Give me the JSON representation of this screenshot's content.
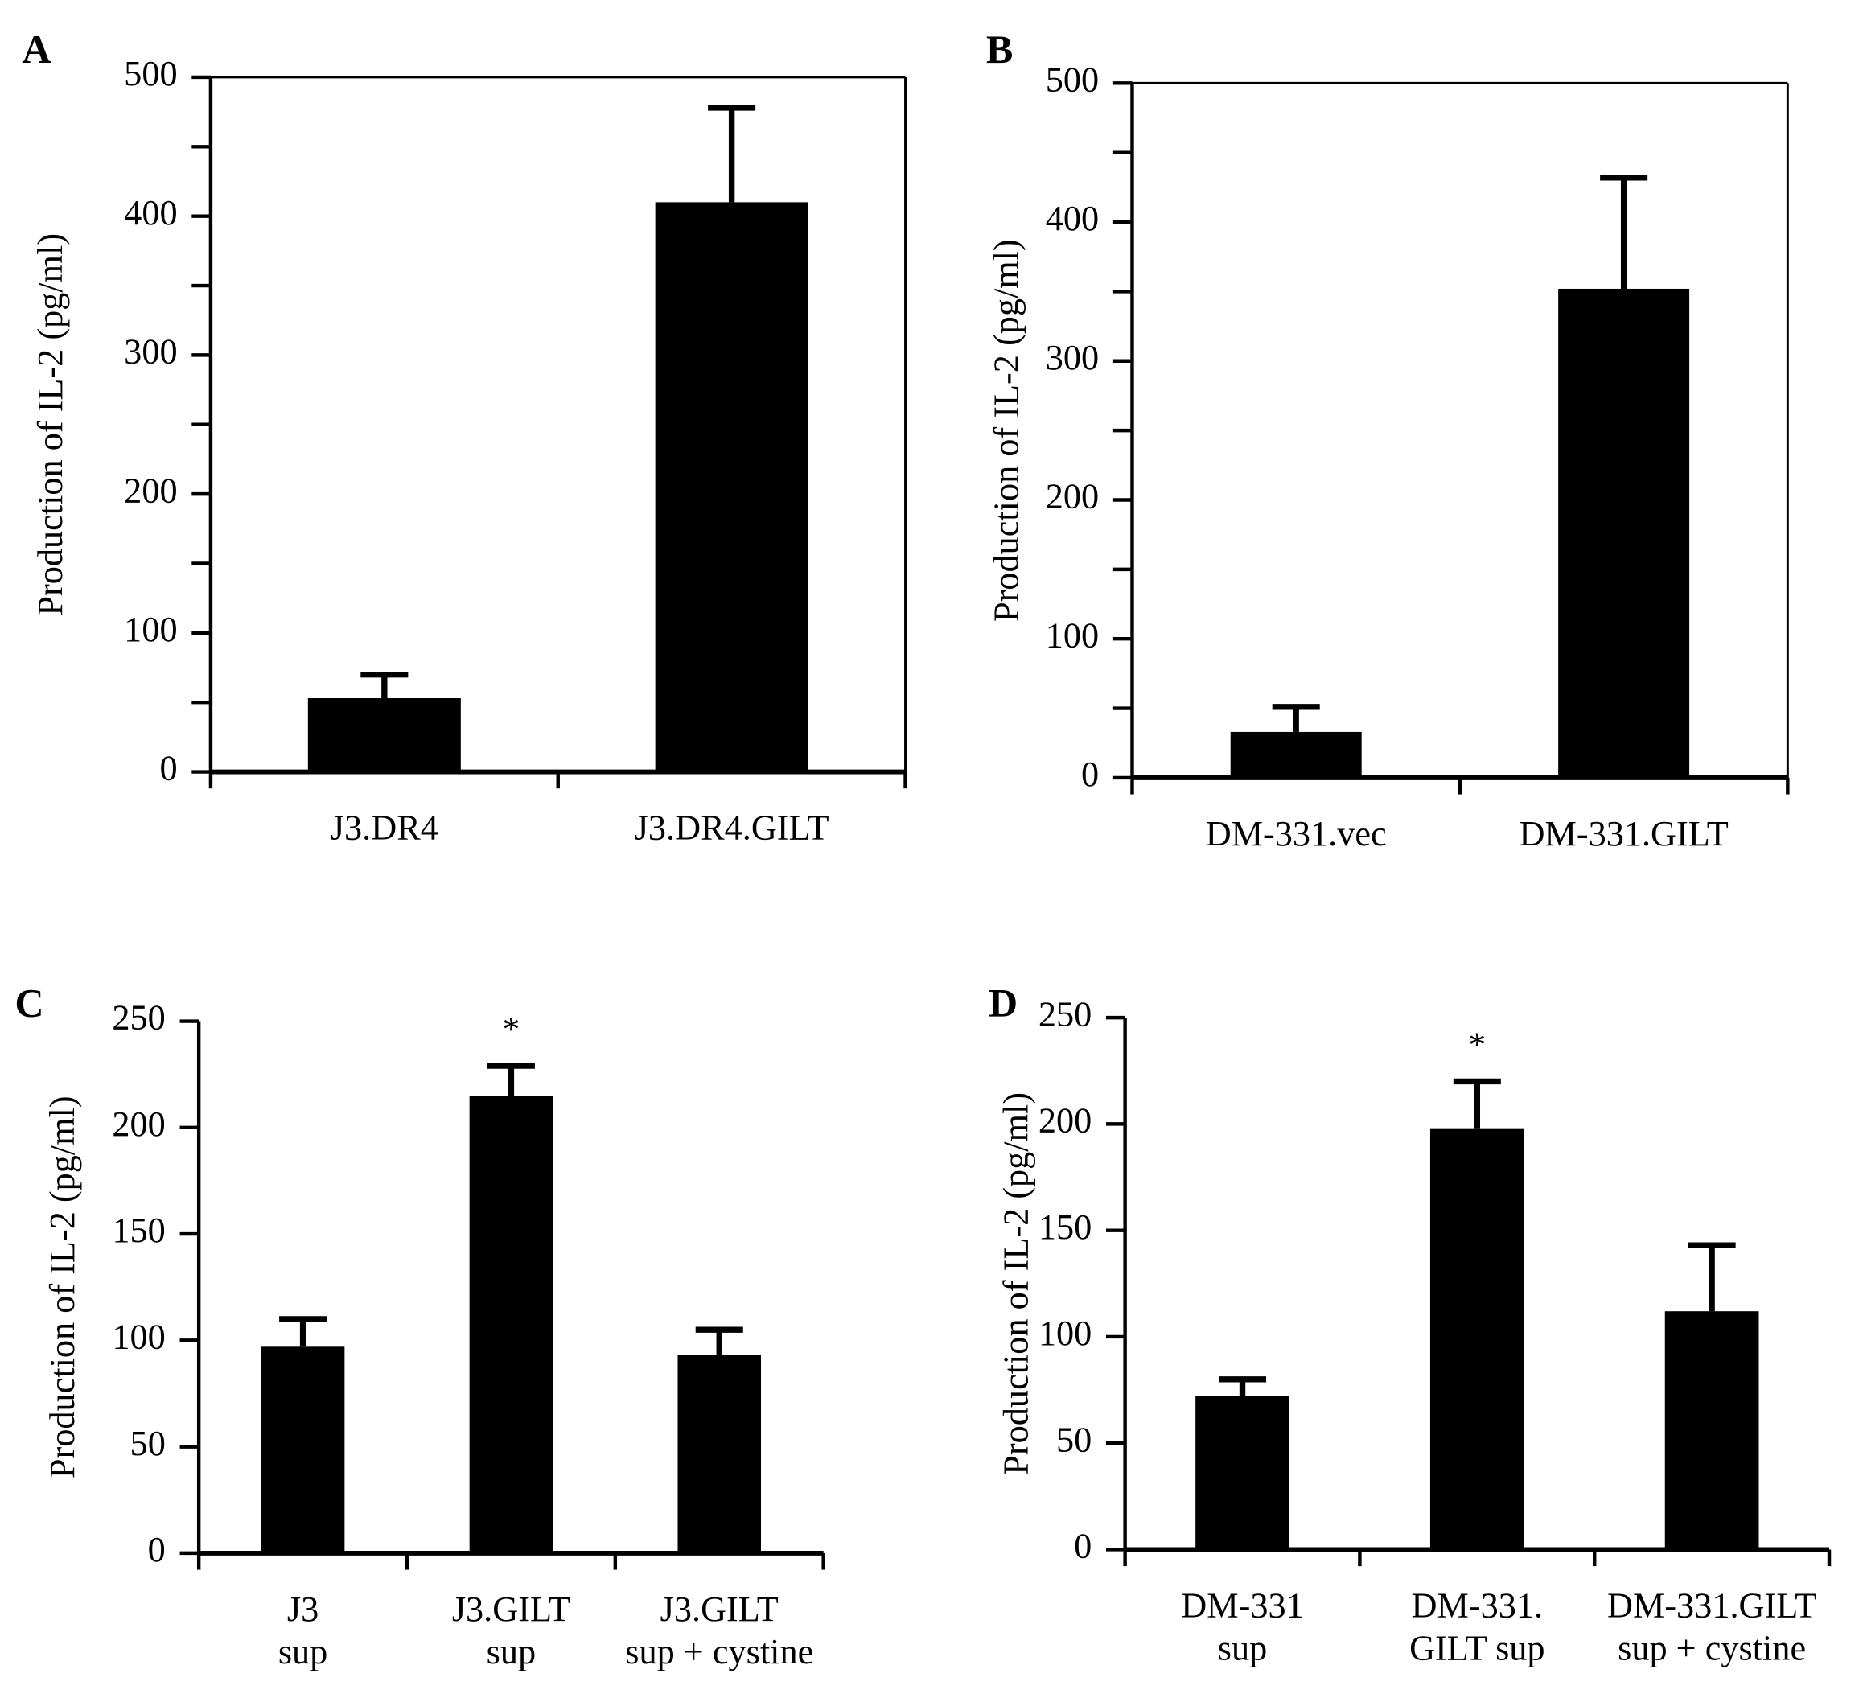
{
  "chart_data": [
    {
      "type": "bar",
      "panel": "A",
      "y_label": "Production of IL-2 (pg/ml)",
      "categories": [
        [
          "J3.DR4"
        ],
        [
          "J3.DR4.GILT"
        ]
      ],
      "values": [
        53,
        410
      ],
      "errors": [
        17,
        68
      ],
      "color": "#000000",
      "ylim": [
        0,
        500
      ],
      "yticks": [
        0,
        100,
        200,
        300,
        400,
        500
      ],
      "frame": true
    },
    {
      "type": "bar",
      "panel": "B",
      "y_label": "Production of IL-2 (pg/ml)",
      "categories": [
        [
          "DM-331.vec"
        ],
        [
          "DM-331.GILT"
        ]
      ],
      "values": [
        33,
        352
      ],
      "errors": [
        18,
        80
      ],
      "color": "#000000",
      "ylim": [
        0,
        500
      ],
      "yticks": [
        0,
        100,
        200,
        300,
        400,
        500
      ],
      "frame": true
    },
    {
      "type": "bar",
      "panel": "C",
      "y_label": "Production of IL-2 (pg/ml)",
      "categories": [
        [
          "J3",
          "sup"
        ],
        [
          "J3.GILT",
          "sup"
        ],
        [
          "J3.GILT",
          "sup + cystine"
        ]
      ],
      "values": [
        97,
        215,
        93
      ],
      "errors": [
        13,
        14,
        12
      ],
      "color": "#000000",
      "ylim": [
        0,
        250
      ],
      "yticks": [
        0,
        50,
        100,
        150,
        200,
        250
      ],
      "frame": false,
      "annotations": [
        {
          "text": "*",
          "at": 1
        }
      ]
    },
    {
      "type": "bar",
      "panel": "D",
      "y_label": "Production of IL-2 (pg/ml)",
      "categories": [
        [
          "DM-331",
          "sup"
        ],
        [
          "DM-331.",
          "GILT sup"
        ],
        [
          "DM-331.GILT",
          "sup + cystine"
        ]
      ],
      "values": [
        72,
        198,
        112
      ],
      "errors": [
        8,
        22,
        31
      ],
      "color": "#000000",
      "ylim": [
        0,
        250
      ],
      "yticks": [
        0,
        50,
        100,
        150,
        200,
        250
      ],
      "frame": false,
      "annotations": [
        {
          "text": "*",
          "at": 1
        }
      ]
    }
  ]
}
